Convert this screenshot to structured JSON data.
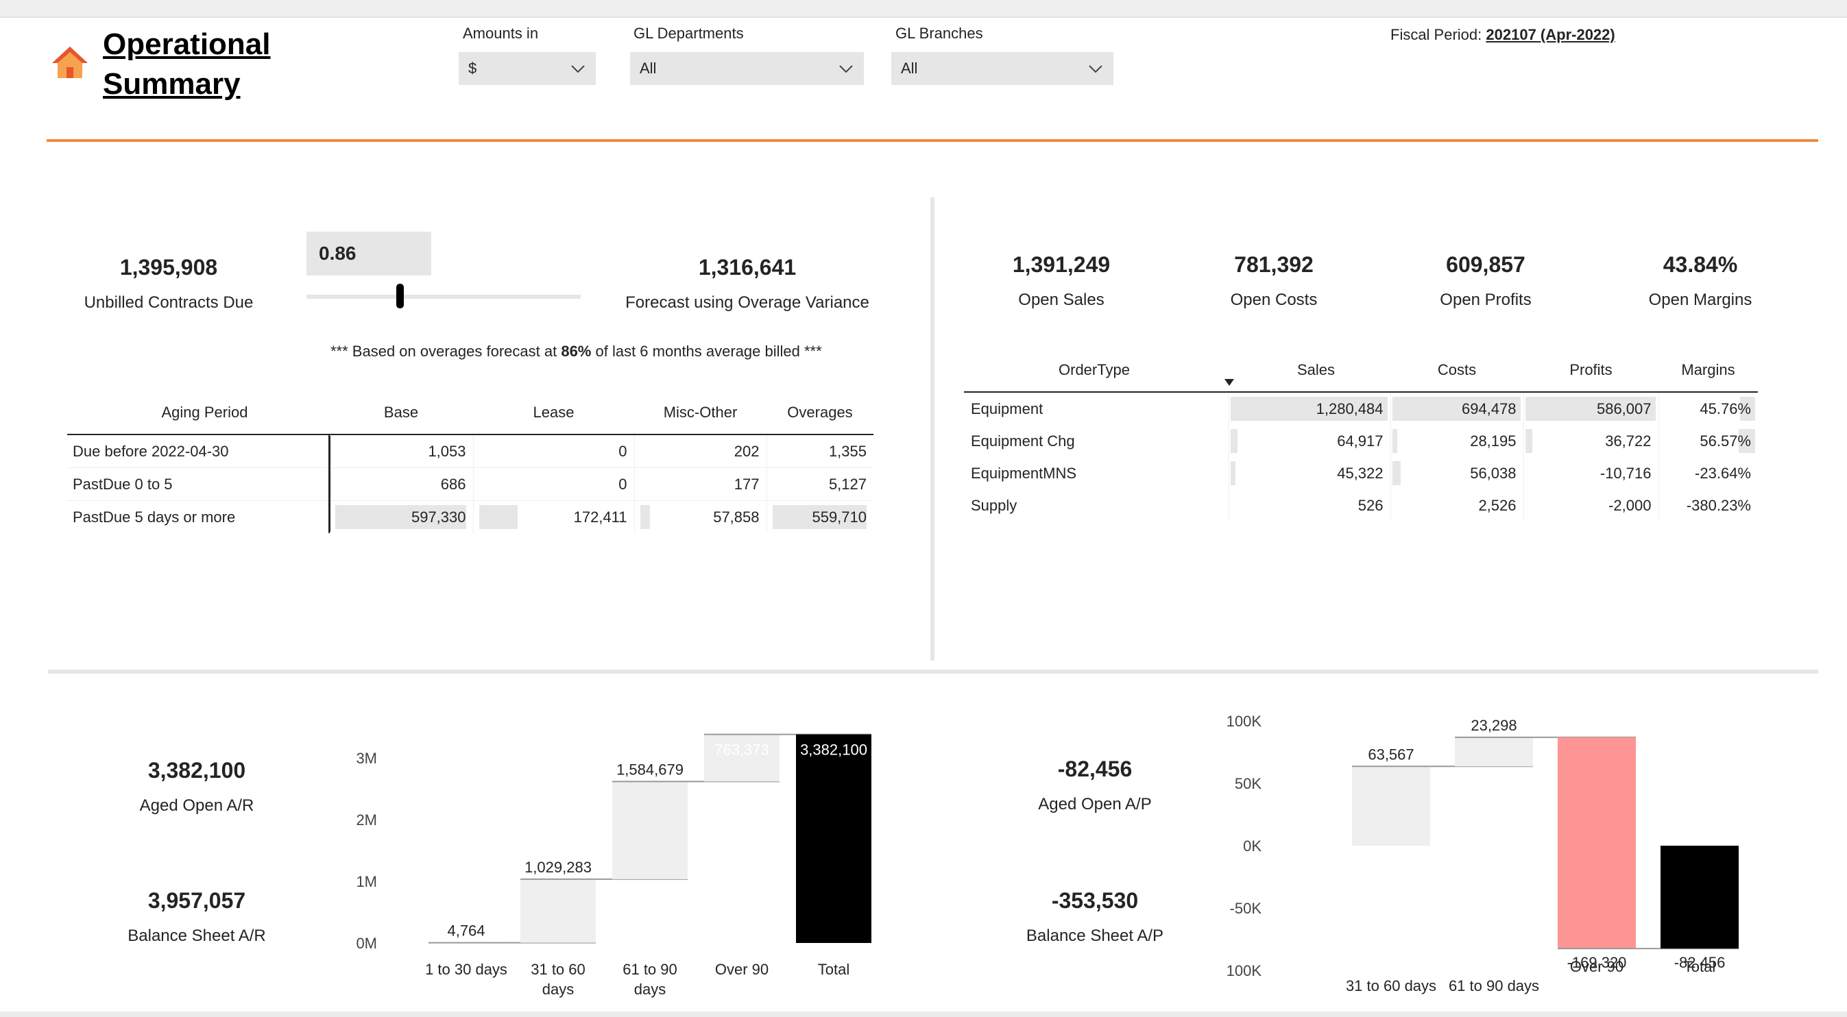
{
  "header": {
    "title_line1": "Operational ",
    "title_line2": "Summary",
    "home_icon": "home-icon",
    "fiscal_label": "Fiscal Period: ",
    "fiscal_value": "202107 (Apr-2022)"
  },
  "slicers": {
    "amounts": {
      "label": "Amounts in",
      "value": "$"
    },
    "departments": {
      "label": "GL Departments",
      "value": "All"
    },
    "branches": {
      "label": "GL Branches",
      "value": "All"
    }
  },
  "unbilled": {
    "unbilled_value": "1,395,908",
    "unbilled_label": "Unbilled Contracts Due",
    "param_value": "0.86",
    "slider_fraction": 0.34,
    "forecast_value": "1,316,641",
    "forecast_label": "Forecast using Overage Variance",
    "note_prefix": "*** Based on overages forecast at ",
    "note_pct": "86%",
    "note_suffix": "  of last 6 months average billed ***"
  },
  "aging_table": {
    "headers": [
      "Aging Period",
      "Base",
      "Lease",
      "Misc-Other",
      "Overages"
    ],
    "rows": [
      {
        "period": "Due before 2022-04-30",
        "base": "1,053",
        "lease": "0",
        "misc": "202",
        "overages": "1,355"
      },
      {
        "period": "PastDue 0 to 5",
        "base": "686",
        "lease": "0",
        "misc": "177",
        "overages": "5,127"
      },
      {
        "period": "PastDue 5 days or more",
        "base": "597,330",
        "lease": "172,411",
        "misc": "57,858",
        "overages": "559,710"
      }
    ]
  },
  "open_kpis": [
    {
      "value": "1,391,249",
      "label": "Open Sales"
    },
    {
      "value": "781,392",
      "label": "Open Costs"
    },
    {
      "value": "609,857",
      "label": "Open Profits"
    },
    {
      "value": "43.84%",
      "label": "Open Margins"
    }
  ],
  "order_table": {
    "headers": [
      "OrderType",
      "Sales",
      "Costs",
      "Profits",
      "Margins"
    ],
    "rows": [
      {
        "type": "Equipment",
        "sales": "1,280,484",
        "costs": "694,478",
        "profits": "586,007",
        "margins": "45.76%"
      },
      {
        "type": "Equipment Chg",
        "sales": "64,917",
        "costs": "28,195",
        "profits": "36,722",
        "margins": "56.57%"
      },
      {
        "type": "EquipmentMNS",
        "sales": "45,322",
        "costs": "56,038",
        "profits": "-10,716",
        "margins": "-23.64%"
      },
      {
        "type": "Supply",
        "sales": "526",
        "costs": "2,526",
        "profits": "-2,000",
        "margins": "-380.23%"
      }
    ]
  },
  "ar_kpis": {
    "aged_value": "3,382,100",
    "aged_label": "Aged Open A/R",
    "bs_value": "3,957,057",
    "bs_label": "Balance Sheet A/R"
  },
  "ap_kpis": {
    "aged_value": "-82,456",
    "aged_label": "Aged Open A/P",
    "bs_value": "-353,530",
    "bs_label": "Balance Sheet A/P"
  },
  "chart_data": [
    {
      "type": "bar",
      "subtype": "waterfall",
      "title": "",
      "categories": [
        [
          "1 to 30 days"
        ],
        [
          "31 to 60",
          "days"
        ],
        [
          "61 to 90",
          "days"
        ],
        [
          "Over 90"
        ],
        [
          "Total"
        ]
      ],
      "values": [
        4764,
        1029283,
        1584679,
        763373,
        3382100
      ],
      "data_labels": [
        "4,764",
        "1,029,283",
        "1,584,679",
        "763,373",
        "3,382,100"
      ],
      "y_ticks": [
        "0M",
        "1M",
        "2M",
        "3M"
      ],
      "y_tick_values": [
        0,
        1000000,
        2000000,
        3000000
      ],
      "ylim": [
        0,
        3400000
      ],
      "colors": {
        "increase": "#efefef",
        "total": "#000000",
        "connector": "#999999"
      }
    },
    {
      "type": "bar",
      "subtype": "waterfall",
      "title": "",
      "categories": [
        [
          "31 to 60 days"
        ],
        [
          "61 to 90 days"
        ],
        [
          "Over 90"
        ],
        [
          "Total"
        ]
      ],
      "values": [
        63567,
        23298,
        -169320,
        -82456
      ],
      "data_labels": [
        "63,567",
        "23,298",
        "-169,320",
        "-82,456"
      ],
      "y_ticks": [
        "100K",
        "50K",
        "0K",
        "-50K",
        "-100K"
      ],
      "y_tick_values": [
        100000,
        50000,
        0,
        -50000,
        -100000
      ],
      "ylim": [
        -100000,
        100000
      ],
      "colors": {
        "increase": "#efefef",
        "decrease": "#fd9595",
        "total": "#000000",
        "connector": "#999999"
      }
    }
  ]
}
